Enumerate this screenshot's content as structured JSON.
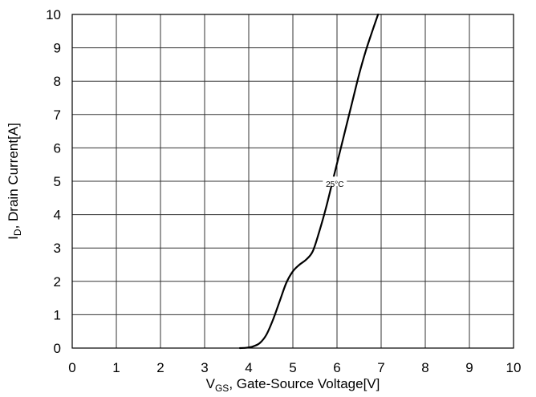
{
  "chart_data": {
    "type": "line",
    "title": "",
    "xlabel": {
      "prefix": "V",
      "subscript": "GS",
      "suffix": ", Gate-Source Voltage[V]"
    },
    "ylabel": {
      "prefix": "I",
      "subscript": "D",
      "suffix": ", Drain Current[A]"
    },
    "xlim": [
      0,
      10
    ],
    "ylim": [
      0,
      10
    ],
    "xticks": [
      0,
      1,
      2,
      3,
      4,
      5,
      6,
      7,
      8,
      9,
      10
    ],
    "yticks": [
      0,
      1,
      2,
      3,
      4,
      5,
      6,
      7,
      8,
      9,
      10
    ],
    "grid": true,
    "series": [
      {
        "color": "#000000",
        "x": [
          3.8,
          3.95,
          4.1,
          4.25,
          4.4,
          4.55,
          4.7,
          4.85,
          5.0,
          5.15,
          5.3,
          5.45,
          5.6,
          5.75,
          5.9,
          6.05,
          6.2,
          6.35,
          6.5,
          6.65,
          6.8,
          6.93
        ],
        "y": [
          0.0,
          0.01,
          0.05,
          0.15,
          0.4,
          0.85,
          1.4,
          1.95,
          2.3,
          2.5,
          2.65,
          2.9,
          3.5,
          4.2,
          5.0,
          5.8,
          6.6,
          7.4,
          8.2,
          8.9,
          9.5,
          10.0
        ]
      }
    ],
    "annotations": [
      {
        "text": "25°C",
        "x": 5.95,
        "y": 4.9
      }
    ]
  }
}
